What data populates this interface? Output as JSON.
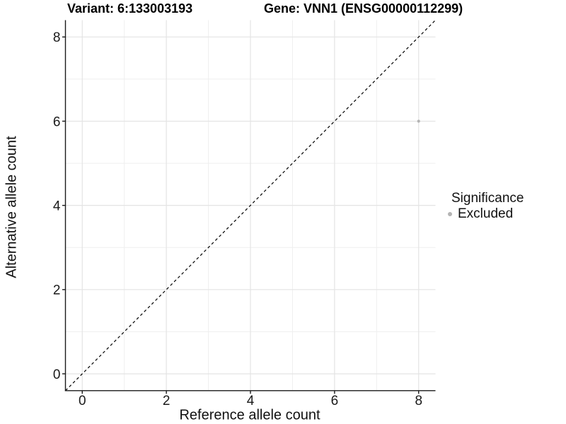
{
  "header": {
    "variant_title": "Variant: 6:133003193",
    "gene_title": "Gene: VNN1 (ENSG00000112299)"
  },
  "axes": {
    "x_title": "Reference allele count",
    "y_title": "Alternative allele count"
  },
  "legend": {
    "title": "Significance",
    "items": [
      {
        "label": "Excluded",
        "color": "#b4b4b4"
      }
    ]
  },
  "chart_data": {
    "type": "scatter",
    "title_left": "Variant: 6:133003193",
    "title_right": "Gene: VNN1 (ENSG00000112299)",
    "xlabel": "Reference allele count",
    "ylabel": "Alternative allele count",
    "xlim": [
      -0.4,
      8.4
    ],
    "ylim": [
      -0.4,
      8.4
    ],
    "x_ticks": [
      0,
      2,
      4,
      6,
      8
    ],
    "y_ticks": [
      0,
      2,
      4,
      6,
      8
    ],
    "x_minor_ticks": [
      1,
      3,
      5,
      7
    ],
    "y_minor_ticks": [
      1,
      3,
      5,
      7
    ],
    "grid": "major+minor",
    "legend_position": "right",
    "series": [
      {
        "name": "Excluded",
        "color": "#b4b4b4",
        "point_radius": 2.1,
        "points": [
          {
            "x": 8,
            "y": 6
          }
        ]
      }
    ],
    "reference_line": {
      "type": "identity y=x",
      "from": [
        -0.4,
        -0.4
      ],
      "to": [
        8.4,
        8.4
      ],
      "style": "dashed",
      "color": "#000000"
    },
    "colors": {
      "grid_major": "#e4e4e4",
      "grid_minor": "#efefef",
      "axis": "#1a1a1a",
      "tick_label": "#1a1a1a",
      "point_excluded": "#b4b4b4",
      "background": "#ffffff"
    }
  }
}
